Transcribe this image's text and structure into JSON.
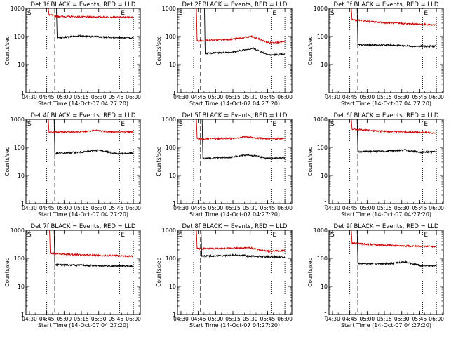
{
  "figure": {
    "ylabel": "Counts/sec",
    "xlabel": "Start Time (14-Oct-07 04:27:20)",
    "x_tick_labels": [
      "04:30",
      "04:45",
      "05:00",
      "05:15",
      "05:30",
      "05:45",
      "06:00"
    ],
    "y_tick_labels": [
      "1",
      "10",
      "100",
      "1000"
    ],
    "marker_s": "S",
    "marker_e": "E"
  },
  "chart_data": [
    {
      "type": "line",
      "title": "Det 1f BLACK = Events, RED = LLD",
      "xlim": [
        "04:27",
        "06:06"
      ],
      "ylim": [
        1,
        1000
      ],
      "yscale": "log",
      "vlines": {
        "dotted": [
          "04:45",
          "05:48",
          "06:00"
        ],
        "dashed": [
          "04:52"
        ]
      },
      "series": [
        {
          "name": "Events",
          "color": "#000000",
          "start": "04:54",
          "end": "06:00",
          "anchors": [
            [
              0,
              90
            ],
            [
              0.3,
              105
            ],
            [
              0.6,
              95
            ],
            [
              1,
              90
            ]
          ]
        },
        {
          "name": "LLD",
          "color": "#cc0000",
          "start": "04:47",
          "end": "06:00",
          "anchors": [
            [
              0,
              600
            ],
            [
              0.1,
              520
            ],
            [
              0.4,
              500
            ],
            [
              1,
              480
            ]
          ]
        }
      ]
    },
    {
      "type": "line",
      "title": "Det 2f BLACK = Events, RED = LLD",
      "xlim": [
        "04:27",
        "06:06"
      ],
      "ylim": [
        1,
        1000
      ],
      "yscale": "log",
      "vlines": {
        "dotted": [
          "04:41",
          "05:48",
          "06:00"
        ],
        "dashed": [
          "04:47"
        ]
      },
      "series": [
        {
          "name": "Events",
          "color": "#000000",
          "start": "04:51",
          "end": "06:00",
          "anchors": [
            [
              0,
              25
            ],
            [
              0.35,
              28
            ],
            [
              0.6,
              38
            ],
            [
              0.8,
              22
            ],
            [
              1,
              23
            ]
          ]
        },
        {
          "name": "LLD",
          "color": "#cc0000",
          "start": "04:44",
          "end": "06:00",
          "anchors": [
            [
              0,
              70
            ],
            [
              0.4,
              80
            ],
            [
              0.62,
              100
            ],
            [
              0.82,
              60
            ],
            [
              1,
              65
            ]
          ]
        }
      ]
    },
    {
      "type": "line",
      "title": "Det 3f BLACK = Events, RED = LLD",
      "xlim": [
        "04:27",
        "06:06"
      ],
      "ylim": [
        1,
        1000
      ],
      "yscale": "log",
      "vlines": {
        "dotted": [
          "04:45",
          "05:48",
          "06:00"
        ],
        "dashed": [
          "04:52"
        ]
      },
      "series": [
        {
          "name": "Events",
          "color": "#000000",
          "start": "04:52",
          "end": "06:00",
          "anchors": [
            [
              0,
              50
            ],
            [
              0.4,
              50
            ],
            [
              0.7,
              45
            ],
            [
              1,
              45
            ]
          ]
        },
        {
          "name": "LLD",
          "color": "#cc0000",
          "start": "04:47",
          "end": "06:00",
          "anchors": [
            [
              0,
              400
            ],
            [
              0.3,
              320
            ],
            [
              0.7,
              280
            ],
            [
              1,
              260
            ]
          ]
        }
      ]
    },
    {
      "type": "line",
      "title": "Det 4f BLACK = Events, RED = LLD",
      "xlim": [
        "04:27",
        "06:06"
      ],
      "ylim": [
        1,
        1000
      ],
      "yscale": "log",
      "vlines": {
        "dotted": [
          "04:45",
          "05:48",
          "06:00"
        ],
        "dashed": [
          "04:52"
        ]
      },
      "series": [
        {
          "name": "Events",
          "color": "#000000",
          "start": "04:52",
          "end": "06:00",
          "anchors": [
            [
              0,
              60
            ],
            [
              0.4,
              70
            ],
            [
              0.55,
              80
            ],
            [
              0.8,
              60
            ],
            [
              1,
              62
            ]
          ]
        },
        {
          "name": "LLD",
          "color": "#cc0000",
          "start": "04:47",
          "end": "06:00",
          "anchors": [
            [
              0,
              350
            ],
            [
              0.4,
              360
            ],
            [
              0.55,
              400
            ],
            [
              0.8,
              350
            ],
            [
              1,
              360
            ]
          ]
        }
      ]
    },
    {
      "type": "line",
      "title": "Det 5f BLACK = Events, RED = LLD",
      "xlim": [
        "04:27",
        "06:06"
      ],
      "ylim": [
        1,
        1000
      ],
      "yscale": "log",
      "vlines": {
        "dotted": [
          "04:41",
          "05:48",
          "06:00"
        ],
        "dashed": [
          "04:47"
        ]
      },
      "series": [
        {
          "name": "Events",
          "color": "#000000",
          "start": "04:49",
          "end": "06:00",
          "anchors": [
            [
              0,
              40
            ],
            [
              0.35,
              45
            ],
            [
              0.55,
              55
            ],
            [
              0.8,
              40
            ],
            [
              1,
              42
            ]
          ]
        },
        {
          "name": "LLD",
          "color": "#cc0000",
          "start": "04:44",
          "end": "06:00",
          "anchors": [
            [
              0,
              200
            ],
            [
              0.4,
              210
            ],
            [
              0.55,
              240
            ],
            [
              0.8,
              200
            ],
            [
              1,
              210
            ]
          ]
        }
      ]
    },
    {
      "type": "line",
      "title": "Det 6f BLACK = Events, RED = LLD",
      "xlim": [
        "04:27",
        "06:06"
      ],
      "ylim": [
        1,
        1000
      ],
      "yscale": "log",
      "vlines": {
        "dotted": [
          "04:45",
          "05:48",
          "06:00"
        ],
        "dashed": [
          "04:52"
        ]
      },
      "series": [
        {
          "name": "Events",
          "color": "#000000",
          "start": "04:52",
          "end": "06:00",
          "anchors": [
            [
              0,
              70
            ],
            [
              0.4,
              75
            ],
            [
              0.6,
              80
            ],
            [
              0.8,
              68
            ],
            [
              1,
              70
            ]
          ]
        },
        {
          "name": "LLD",
          "color": "#cc0000",
          "start": "04:47",
          "end": "06:00",
          "anchors": [
            [
              0,
              450
            ],
            [
              0.3,
              380
            ],
            [
              0.6,
              360
            ],
            [
              1,
              330
            ]
          ]
        }
      ]
    },
    {
      "type": "line",
      "title": "Det 7f BLACK = Events, RED = LLD",
      "xlim": [
        "04:27",
        "06:06"
      ],
      "ylim": [
        1,
        1000
      ],
      "yscale": "log",
      "vlines": {
        "dotted": [
          "04:45",
          "05:48",
          "06:00"
        ],
        "dashed": [
          "04:52"
        ]
      },
      "series": [
        {
          "name": "Events",
          "color": "#000000",
          "start": "04:52",
          "end": "06:00",
          "anchors": [
            [
              0,
              60
            ],
            [
              0.5,
              55
            ],
            [
              1,
              52
            ]
          ]
        },
        {
          "name": "LLD",
          "color": "#cc0000",
          "start": "04:48",
          "end": "06:00",
          "anchors": [
            [
              0,
              150
            ],
            [
              0.5,
              130
            ],
            [
              1,
              120
            ]
          ]
        }
      ]
    },
    {
      "type": "line",
      "title": "Det 8f BLACK = Events, RED = LLD",
      "xlim": [
        "04:27",
        "06:06"
      ],
      "ylim": [
        1,
        1000
      ],
      "yscale": "log",
      "vlines": {
        "dotted": [
          "04:41",
          "05:48",
          "06:00"
        ],
        "dashed": [
          "04:47"
        ]
      },
      "series": [
        {
          "name": "Events",
          "color": "#000000",
          "start": "04:48",
          "end": "06:00",
          "anchors": [
            [
              0,
              120
            ],
            [
              0.4,
              130
            ],
            [
              0.6,
              120
            ],
            [
              1,
              110
            ]
          ]
        },
        {
          "name": "LLD",
          "color": "#cc0000",
          "start": "04:44",
          "end": "06:00",
          "anchors": [
            [
              0,
              220
            ],
            [
              0.4,
              230
            ],
            [
              0.6,
              240
            ],
            [
              0.8,
              180
            ],
            [
              1,
              190
            ]
          ]
        }
      ]
    },
    {
      "type": "line",
      "title": "Det 9f BLACK = Events, RED = LLD",
      "xlim": [
        "04:27",
        "06:06"
      ],
      "ylim": [
        1,
        1000
      ],
      "yscale": "log",
      "vlines": {
        "dotted": [
          "04:45",
          "05:48",
          "06:00"
        ],
        "dashed": [
          "04:52"
        ]
      },
      "series": [
        {
          "name": "Events",
          "color": "#000000",
          "start": "04:52",
          "end": "06:00",
          "anchors": [
            [
              0,
              65
            ],
            [
              0.4,
              65
            ],
            [
              0.6,
              75
            ],
            [
              0.8,
              55
            ],
            [
              1,
              55
            ]
          ]
        },
        {
          "name": "LLD",
          "color": "#cc0000",
          "start": "04:47",
          "end": "06:00",
          "anchors": [
            [
              0,
              350
            ],
            [
              0.3,
              300
            ],
            [
              0.6,
              280
            ],
            [
              1,
              260
            ]
          ]
        }
      ]
    }
  ]
}
